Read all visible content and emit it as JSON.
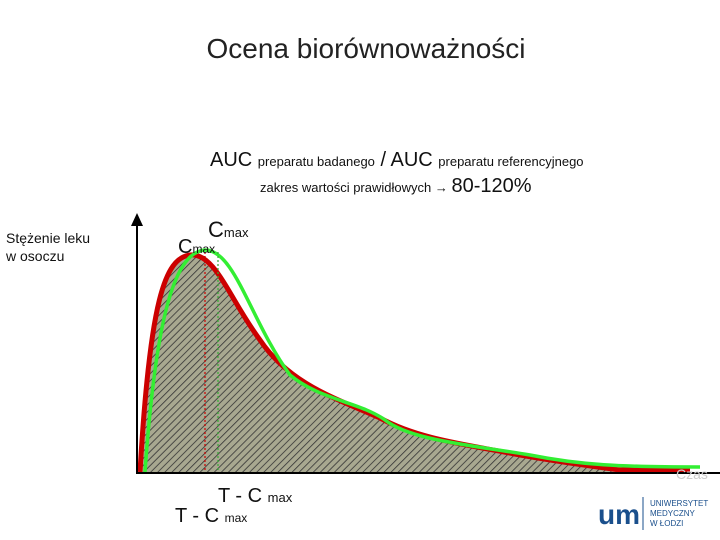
{
  "title": "Ocena biorównoważności",
  "formula": {
    "auc_test": "AUC",
    "test_label": "preparatu badanego",
    "auc_ref": "/ AUC",
    "ref_label": "preparatu referencyjnego"
  },
  "range": {
    "label": "zakres wartości prawidłowych →",
    "value": "80-120%"
  },
  "y_axis_label": [
    "Stężenie leku",
    "w osoczu"
  ],
  "x_axis_label": "Czas",
  "cmax_upper": {
    "symbol": "C",
    "sub": "max"
  },
  "cmax_lower": {
    "symbol": "C",
    "sub": "max"
  },
  "tmax_upper": {
    "symbol": "T - C",
    "sub": "max"
  },
  "tmax_lower": {
    "symbol": "T - C",
    "sub": "max"
  },
  "logo": {
    "mark": "um",
    "lines": [
      "UNIWERSYTET",
      "MEDYCZNY",
      "W ŁODZI"
    ]
  }
}
